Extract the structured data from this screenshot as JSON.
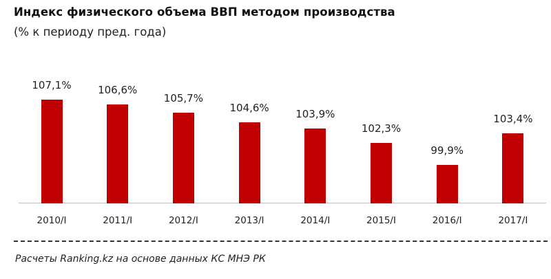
{
  "header": {
    "title": "Индекс физического объема ВВП методом производства",
    "subtitle": "(% к периоду пред. года)"
  },
  "footer": {
    "source": "Расчеты Ranking.kz на основе данных  КС МНЭ РК"
  },
  "colors": {
    "bar": "#c00000",
    "axis": "#bfbfbf",
    "text": "#222222"
  },
  "chart_data": {
    "type": "bar",
    "title": "Индекс физического объема ВВП методом производства",
    "subtitle": "(% к периоду пред. года)",
    "xlabel": "",
    "ylabel": "",
    "categories": [
      "2010/I",
      "2011/I",
      "2012/I",
      "2013/I",
      "2014/I",
      "2015/I",
      "2016/I",
      "2017/I"
    ],
    "values": [
      107.1,
      106.6,
      105.7,
      104.6,
      103.9,
      102.3,
      99.9,
      103.4
    ],
    "labels": [
      "107,1%",
      "106,6%",
      "105,7%",
      "104,6%",
      "103,9%",
      "102,3%",
      "99,9%",
      "103,4%"
    ],
    "unit": "%",
    "grid": false,
    "legend": null,
    "y_axis_visible": false,
    "source": "Расчеты Ranking.kz на основе данных  КС МНЭ РК"
  }
}
